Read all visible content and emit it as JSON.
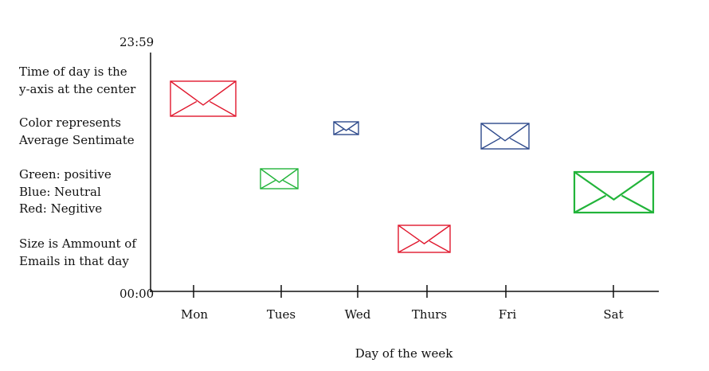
{
  "legend": {
    "block1": [
      "Time of day is the",
      "y-axis at the center"
    ],
    "block2": [
      "Color represents",
      "Average Sentimate"
    ],
    "block3": [
      "Green: positive",
      "Blue: Neutral",
      "Red: Negitive"
    ],
    "block4": [
      "Size is Ammount of",
      "Emails in that day"
    ]
  },
  "axis": {
    "y_top": "23:59",
    "y_bottom": "00:00",
    "x_title": "Day of the week",
    "x_ticks": [
      "Mon",
      "Tues",
      "Wed",
      "Thurs",
      "Fri",
      "Sat"
    ]
  },
  "colors": {
    "positive": "#22b43a",
    "neutral": "#2e4a8c",
    "negative": "#e0182e"
  },
  "chart_data": {
    "type": "scatter",
    "marker": "envelope-icon",
    "xlabel": "Day of the week",
    "y_range": [
      "00:00",
      "23:59"
    ],
    "points": [
      {
        "day": "Mon",
        "sentiment": "negative"
      },
      {
        "day": "Tues",
        "sentiment": "positive"
      },
      {
        "day": "Wed",
        "sentiment": "neutral"
      },
      {
        "day": "Thurs",
        "sentiment": "negative"
      },
      {
        "day": "Fri",
        "sentiment": "neutral"
      },
      {
        "day": "Sat",
        "sentiment": "positive"
      }
    ]
  }
}
